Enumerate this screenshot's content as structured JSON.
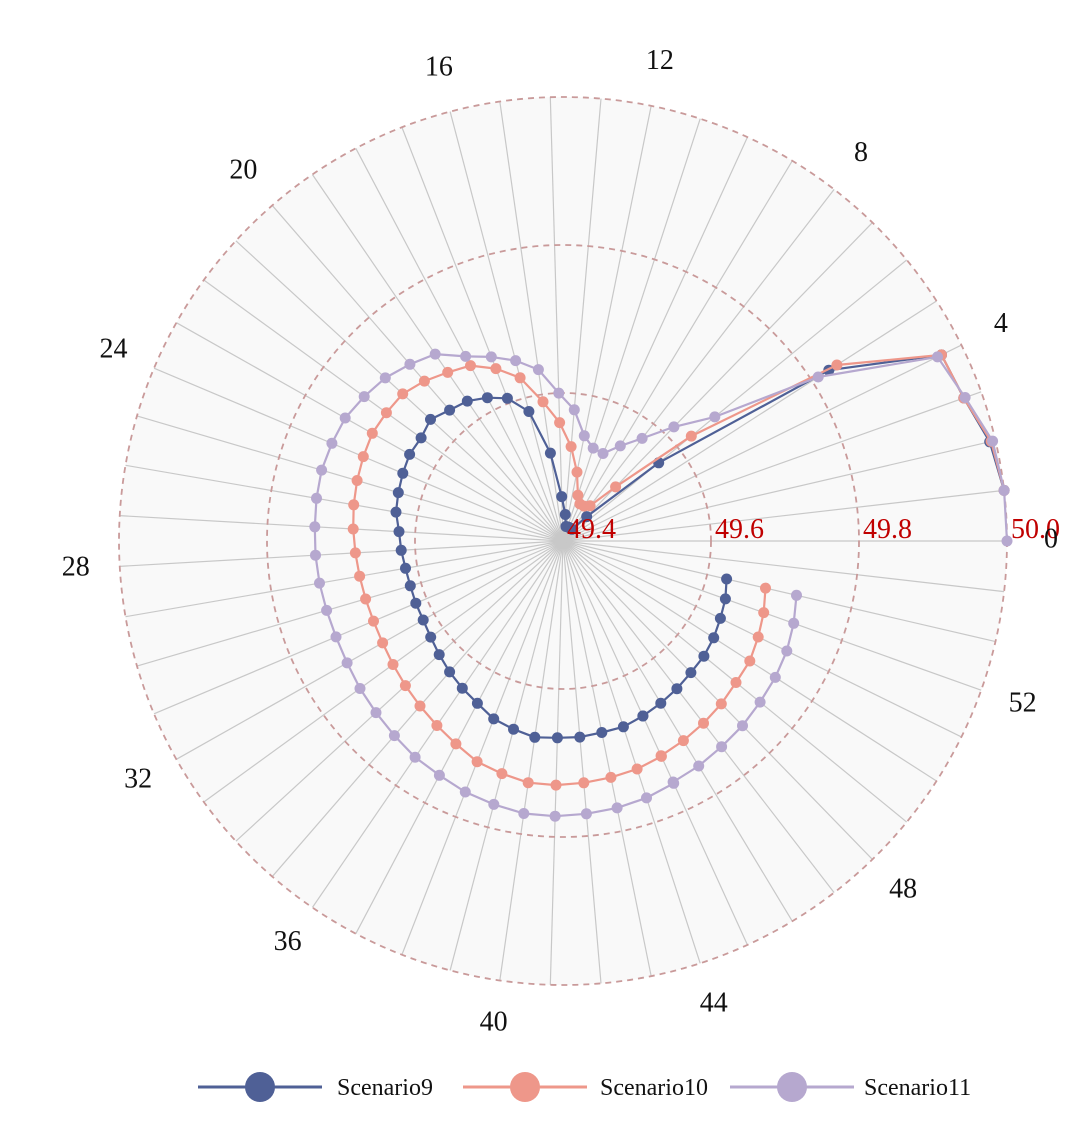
{
  "chart_data": {
    "type": "polar-line",
    "title": "",
    "angular_axis": {
      "tick_labels": [
        "0",
        "4",
        "8",
        "12",
        "16",
        "20",
        "24",
        "28",
        "32",
        "36",
        "40",
        "44",
        "48",
        "52"
      ],
      "tick_values": [
        0,
        4,
        8,
        12,
        16,
        20,
        24,
        28,
        32,
        36,
        40,
        44,
        48,
        52
      ],
      "n_positions": 55,
      "direction": "counterclockwise",
      "zero_position": "right"
    },
    "radial_axis": {
      "tick_labels": [
        "49.4",
        "49.6",
        "49.8",
        "50.0"
      ],
      "tick_values": [
        49.4,
        49.6,
        49.8,
        50.0
      ],
      "range": [
        49.4,
        50.0
      ],
      "label_color": "#c00000",
      "circle_style": "dashed"
    },
    "grid": true,
    "legend_position": "bottom",
    "x": [
      0,
      1,
      2,
      3,
      4,
      5,
      6,
      7,
      8,
      9,
      10,
      11,
      12,
      13,
      14,
      15,
      16,
      17,
      18,
      19,
      20,
      21,
      22,
      23,
      24,
      25,
      26,
      27,
      28,
      29,
      30,
      31,
      32,
      33,
      34,
      35,
      36,
      37,
      38,
      39,
      40,
      41,
      42,
      43,
      44,
      45,
      45,
      46,
      47,
      48,
      49,
      50,
      51,
      52,
      53
    ],
    "series": [
      {
        "name": "Scenario9",
        "color": "#4f6096",
        "values": [
          null,
          50.0,
          49.992,
          49.975,
          49.97,
          49.827,
          49.567,
          49.446,
          49.42,
          49.42,
          49.42,
          49.42,
          49.42,
          49.436,
          49.46,
          49.52,
          49.581,
          49.607,
          49.619,
          49.629,
          49.634,
          49.643,
          49.637,
          49.638,
          49.635,
          49.632,
          49.629,
          49.622,
          49.619,
          49.616,
          49.615,
          49.616,
          49.617,
          49.621,
          49.627,
          49.634,
          49.641,
          49.648,
          49.658,
          49.663,
          49.668,
          49.666,
          49.666,
          49.664,
          49.664,
          49.66,
          49.66,
          49.656,
          49.652,
          49.648,
          49.646,
          49.642,
          49.637,
          49.633,
          49.627
        ],
        "markers": true
      },
      {
        "name": "Scenario10",
        "color": "#ee978a",
        "values": [
          null,
          50.0,
          49.994,
          49.975,
          49.97,
          49.84,
          49.624,
          49.502,
          49.46,
          49.455,
          49.455,
          49.465,
          49.495,
          49.528,
          49.56,
          49.59,
          49.628,
          49.65,
          49.668,
          49.676,
          49.686,
          49.694,
          49.695,
          49.696,
          49.693,
          49.69,
          49.687,
          49.684,
          49.681,
          49.679,
          49.678,
          49.678,
          49.68,
          49.684,
          49.689,
          49.695,
          49.702,
          49.71,
          49.72,
          49.725,
          49.73,
          49.73,
          49.728,
          49.726,
          49.724,
          49.72,
          49.719,
          49.715,
          49.711,
          49.707,
          49.702,
          49.7,
          49.694,
          49.688,
          49.681
        ],
        "markers": true
      },
      {
        "name": "Scenario11",
        "color": "#b6a8cf",
        "values": [
          50.0,
          50.0,
          49.996,
          49.977,
          49.964,
          49.81,
          49.665,
          49.615,
          49.575,
          49.55,
          49.53,
          49.532,
          49.545,
          49.578,
          49.6,
          49.634,
          49.652,
          49.667,
          49.682,
          49.706,
          49.716,
          49.726,
          49.732,
          49.738,
          49.739,
          49.74,
          49.738,
          49.736,
          49.735,
          49.734,
          49.733,
          49.733,
          49.735,
          49.739,
          49.743,
          49.748,
          49.754,
          49.758,
          49.764,
          49.768,
          49.772,
          49.772,
          49.77,
          49.768,
          49.765,
          49.76,
          49.758,
          49.755,
          49.751,
          49.748,
          49.744,
          49.741,
          49.737,
          49.731,
          49.724
        ],
        "markers": true
      }
    ]
  }
}
